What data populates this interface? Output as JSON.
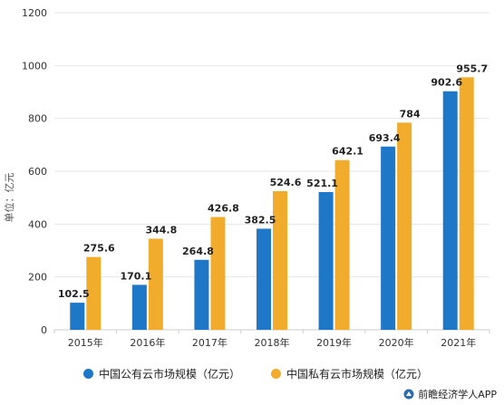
{
  "chart_data": {
    "type": "bar",
    "categories": [
      "2015年",
      "2016年",
      "2017年",
      "2018年",
      "2019年",
      "2020年",
      "2021年"
    ],
    "series": [
      {
        "name": "中国公有云市场规模（亿元）",
        "values": [
          102.5,
          170.1,
          264.8,
          382.5,
          521.1,
          693.4,
          902.6
        ],
        "color": "#1f77c8"
      },
      {
        "name": "中国私有云市场规模（亿元）",
        "values": [
          275.6,
          344.8,
          426.8,
          524.6,
          642.1,
          784,
          955.7
        ],
        "color": "#f2ac2b"
      }
    ],
    "data_labels": [
      [
        "102.5",
        "170.1",
        "264.8",
        "382.5",
        "521.1",
        "693.4",
        "902.6"
      ],
      [
        "275.6",
        "344.8",
        "426.8",
        "524.6",
        "642.1",
        "784",
        "955.7"
      ]
    ],
    "ylabel": "单位：亿元",
    "ylim": [
      0,
      1200
    ],
    "yticks": [
      0,
      200,
      400,
      600,
      800,
      1000,
      1200
    ],
    "grid": "horizontal",
    "legend_position": "bottom"
  },
  "source": "前瞻经济学人APP"
}
